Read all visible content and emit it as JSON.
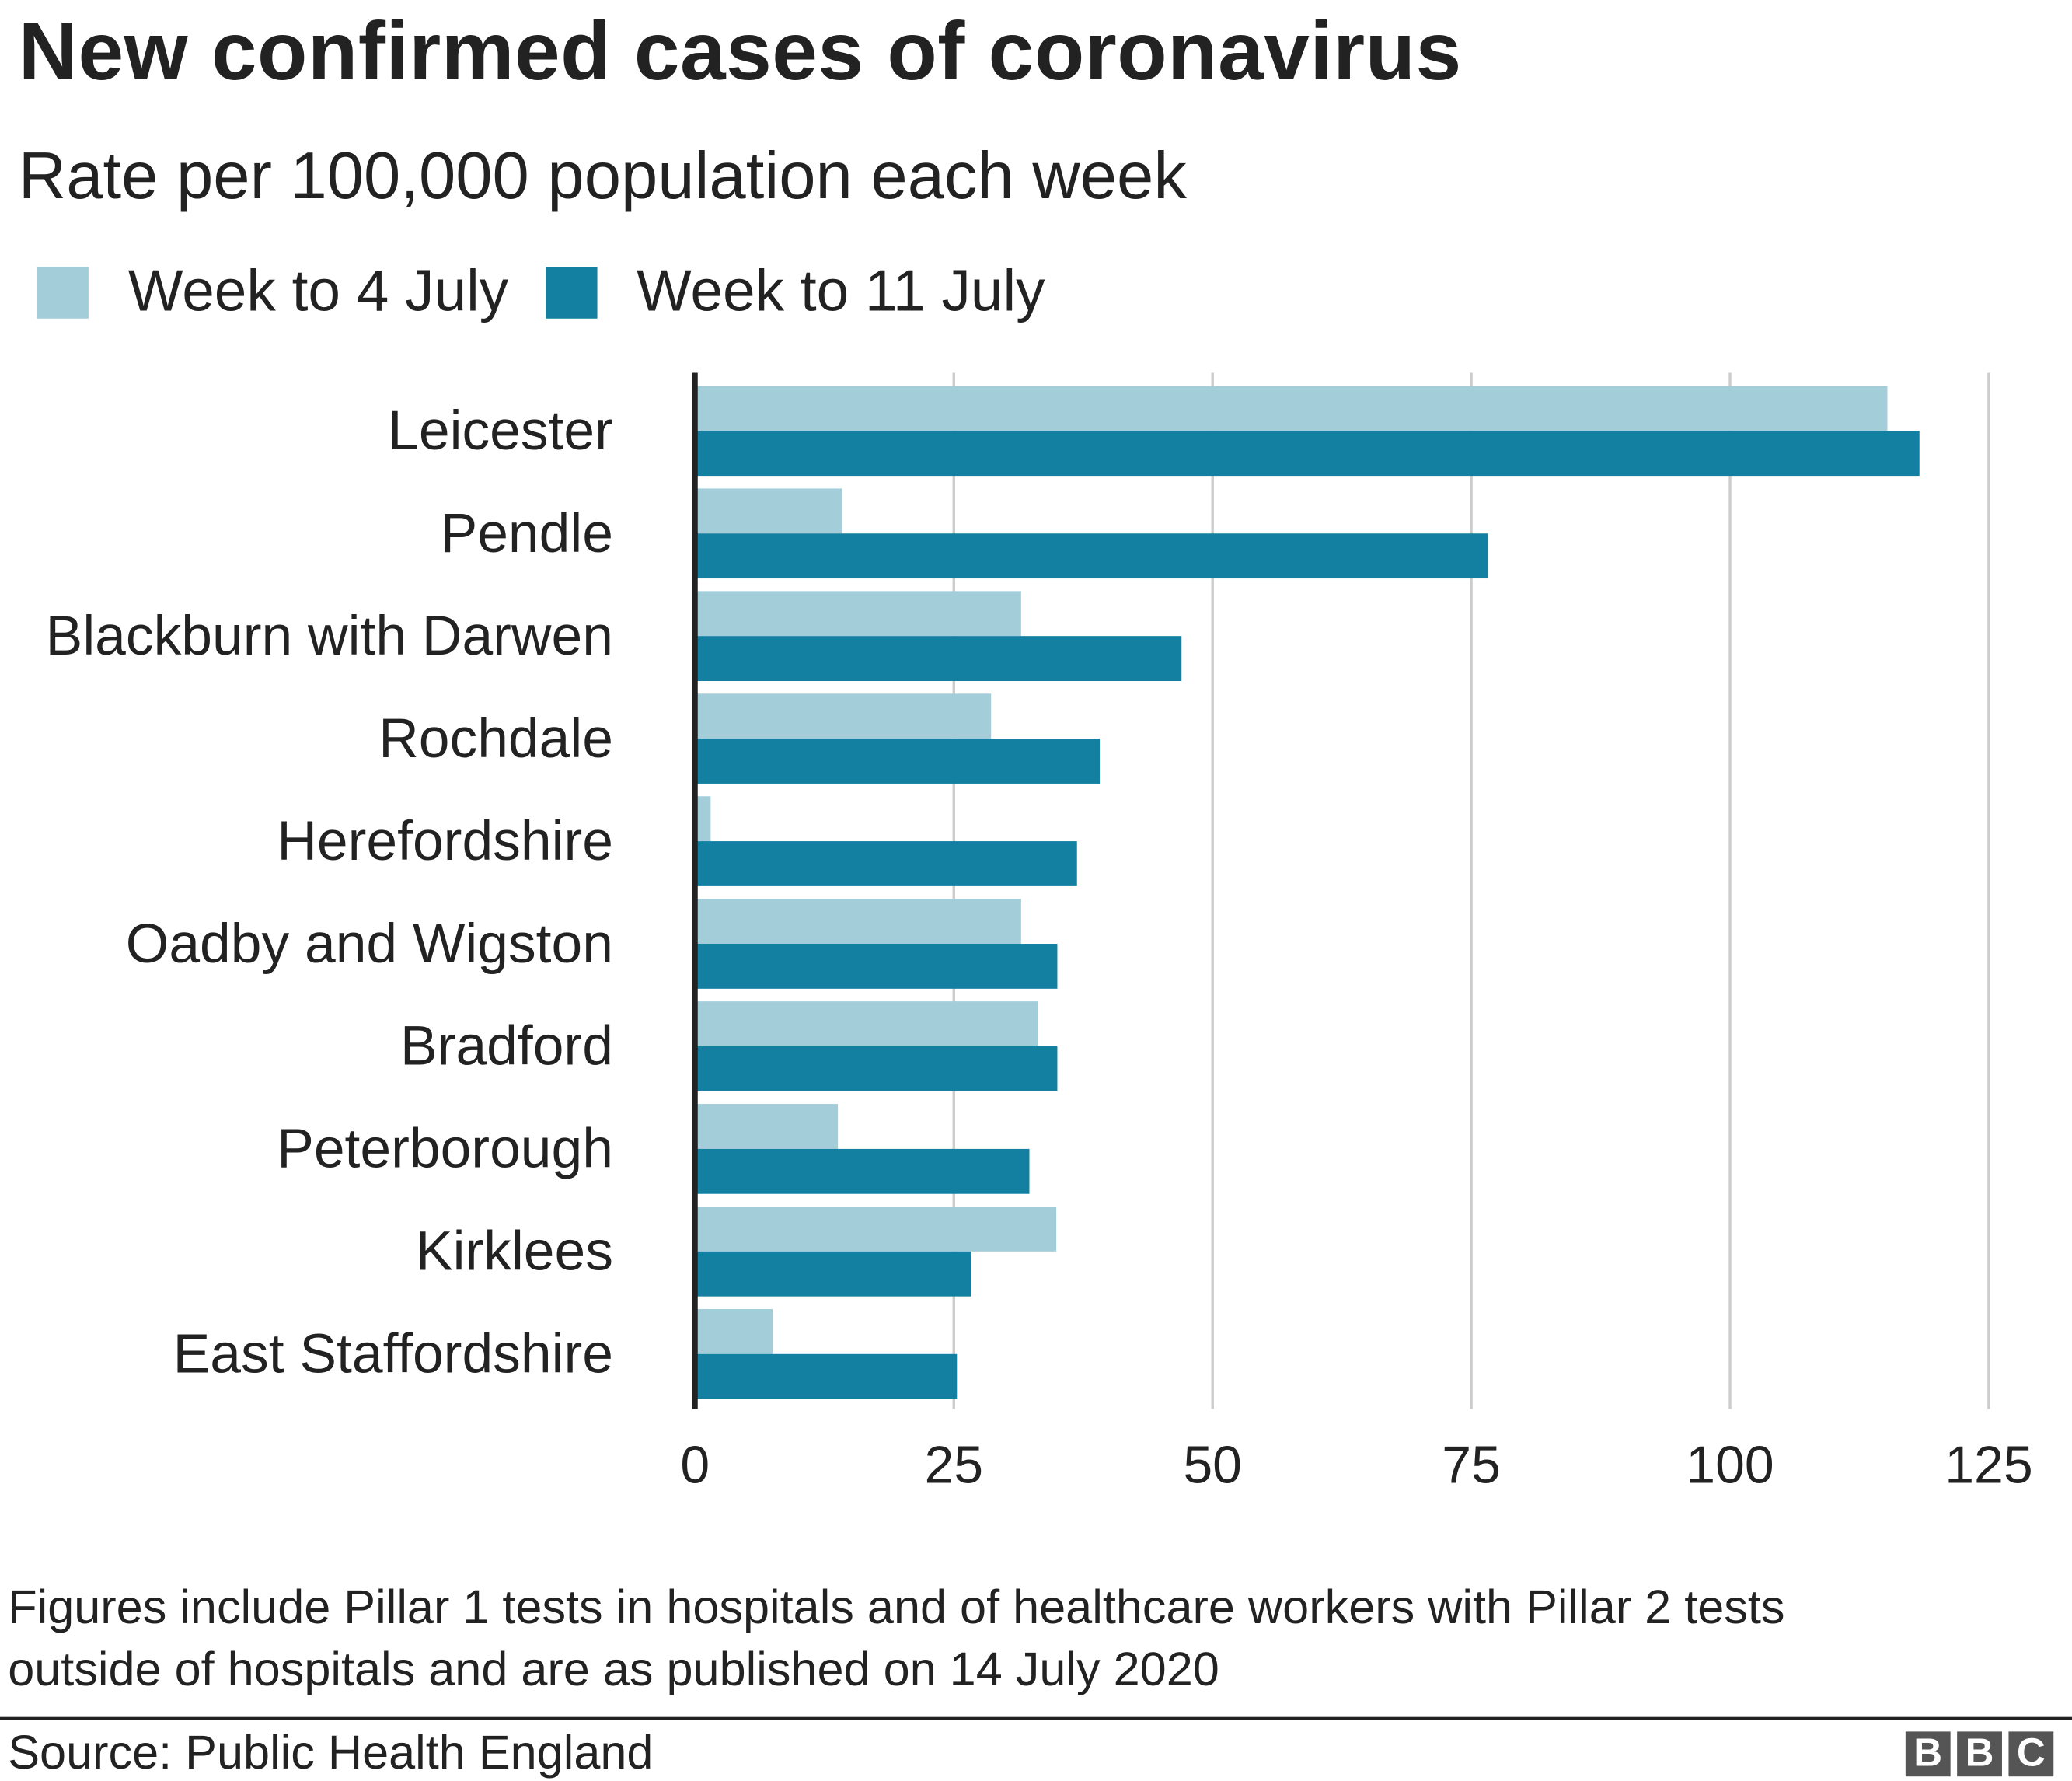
{
  "chart_data": {
    "type": "bar",
    "orientation": "horizontal",
    "title": "New confirmed cases of coronavirus",
    "subtitle": "Rate per 100,000 population each week",
    "categories": [
      "Leicester",
      "Pendle",
      "Blackburn with Darwen",
      "Rochdale",
      "Herefordshire",
      "Oadby and Wigston",
      "Bradford",
      "Peterborough",
      "Kirklees",
      "East Staffordshire"
    ],
    "series": [
      {
        "name": "Week to 4 July",
        "color": "#a3cdd9",
        "values": [
          115.2,
          14.2,
          31.5,
          28.6,
          1.5,
          31.5,
          33.1,
          13.8,
          34.9,
          7.5
        ]
      },
      {
        "name": "Week to 11 July",
        "color": "#1380a1",
        "values": [
          118.3,
          76.6,
          47.0,
          39.1,
          36.9,
          35.0,
          35.0,
          32.3,
          26.7,
          25.3
        ]
      }
    ],
    "xlim": [
      0,
      125
    ],
    "xticks": [
      0,
      25,
      50,
      75,
      100,
      125
    ],
    "xtick_labels": [
      "0",
      "25",
      "50",
      "75",
      "100",
      "125"
    ],
    "grid": true,
    "legend_placement": "top-left"
  },
  "footnote_line1": "Figures include Pillar 1 tests in hospitals and of healthcare workers with Pillar 2 tests",
  "footnote_line2": "outside of hospitals and are as published on 14 July 2020",
  "source": "Source: Public Health England",
  "logo": [
    "B",
    "B",
    "C"
  ]
}
